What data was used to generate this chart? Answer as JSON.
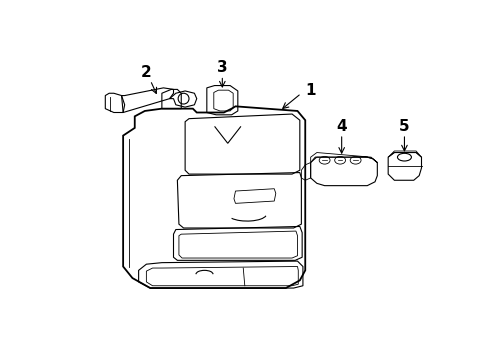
{
  "background_color": "#ffffff",
  "line_color": "#000000",
  "lw_main": 1.3,
  "lw_thin": 0.8,
  "lw_inner": 0.6
}
